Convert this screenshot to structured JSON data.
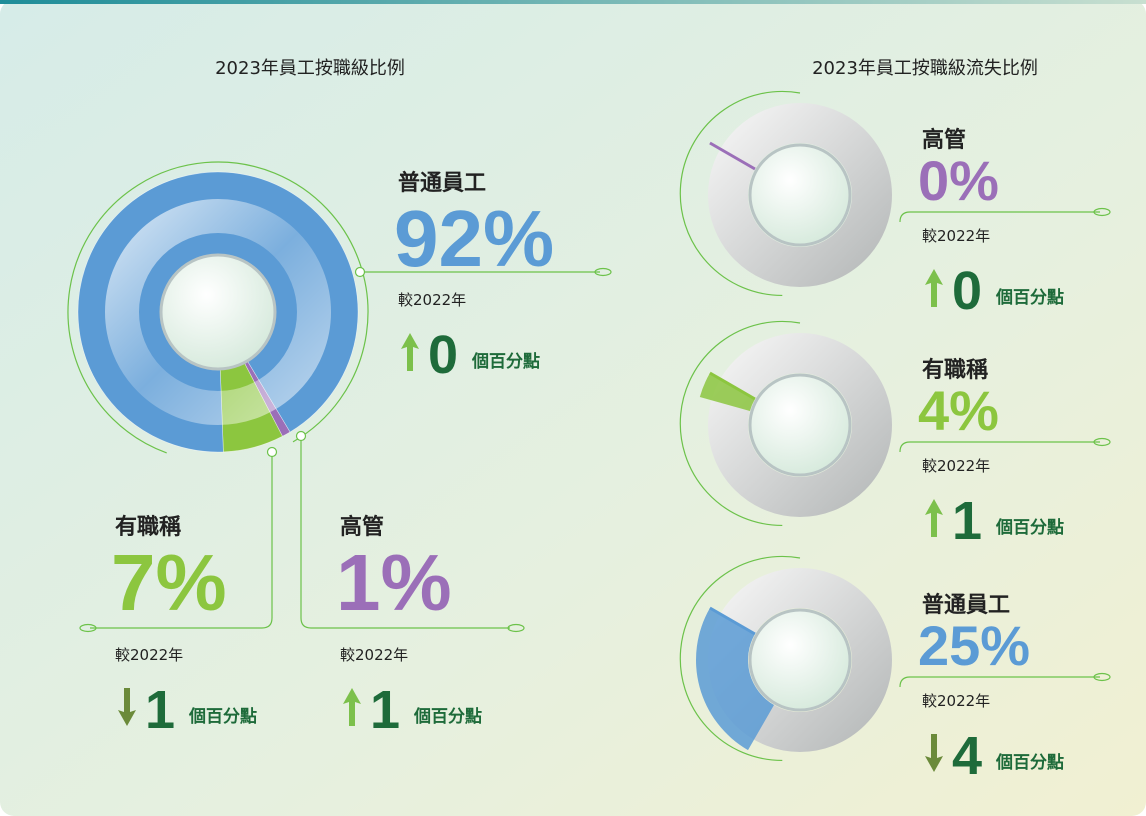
{
  "chart_data": [
    {
      "type": "donut",
      "title": "2023年員工按職級比例",
      "categories": [
        "普通員工",
        "有職稱",
        "高管"
      ],
      "values": [
        92,
        7,
        1
      ],
      "value_labels": [
        "92%",
        "7%",
        "1%"
      ],
      "colors": [
        "#5b9bd5",
        "#8cc63f",
        "#9b6fb8"
      ],
      "comparison_label": "較2022年",
      "changes": [
        0,
        1,
        1
      ],
      "change_direction": [
        "up",
        "down",
        "up"
      ],
      "change_unit": "個百分點"
    },
    {
      "type": "donut",
      "multiples": true,
      "title": "2023年員工按職級流失比例",
      "categories": [
        "高管",
        "有職稱",
        "普通員工"
      ],
      "values": [
        0,
        4,
        25
      ],
      "value_labels": [
        "0%",
        "4%",
        "25%"
      ],
      "colors": [
        "#9b6fb8",
        "#8cc63f",
        "#5b9bd5"
      ],
      "comparison_label": "較2022年",
      "changes": [
        0,
        1,
        4
      ],
      "change_direction": [
        "up",
        "up",
        "down"
      ],
      "change_unit": "個百分點"
    }
  ]
}
